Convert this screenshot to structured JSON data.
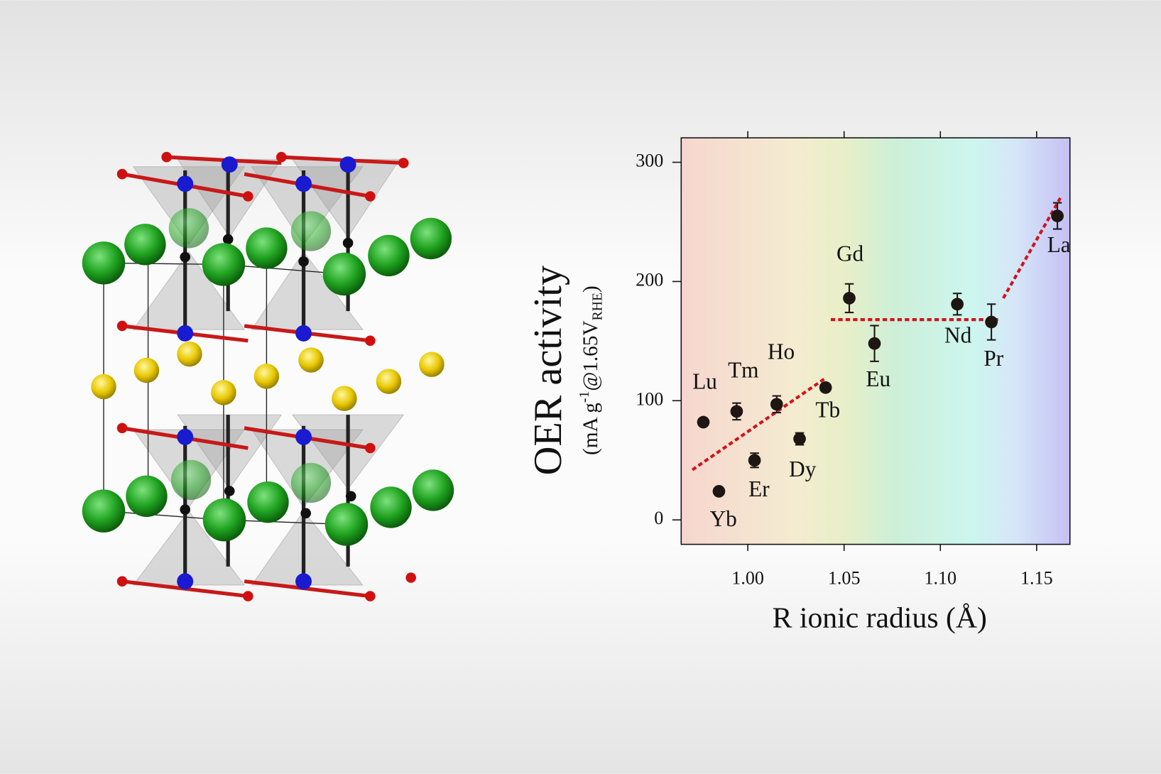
{
  "chart_data": {
    "type": "scatter",
    "ylabel": "OER activity",
    "ylabel_units": [
      "(mA g",
      "-1",
      "@1.65V",
      "RHE",
      ")"
    ],
    "xlabel": "R ionic radius (Å)",
    "point_labels": [
      "Lu",
      "Yb",
      "Tm",
      "Er",
      "Ho",
      "Dy",
      "Tb",
      "Gd",
      "Eu",
      "Nd",
      "Pr",
      "La"
    ],
    "x": [
      0.9769,
      0.985,
      0.9942,
      1.0035,
      1.015,
      1.0269,
      1.0404,
      1.0527,
      1.0658,
      1.1088,
      1.1265,
      1.1608
    ],
    "values": [
      82,
      24,
      91,
      50,
      97,
      68,
      111,
      186,
      148,
      181,
      166,
      255
    ],
    "errors": [
      null,
      null,
      7,
      6,
      7,
      5,
      3,
      12,
      15,
      9,
      15,
      11
    ],
    "color": "#1e1612",
    "trend_lines": [
      {
        "x": [
          0.9712,
          1.0404
        ],
        "y": [
          42,
          119
        ]
      },
      {
        "x": [
          1.0431,
          1.1315
        ],
        "y": [
          168,
          168
        ]
      },
      {
        "x": [
          1.1327,
          1.1623
        ],
        "y": [
          186,
          270
        ]
      }
    ],
    "trend_color": "#d0141c",
    "xlim": [
      0.9654,
      1.1673
    ],
    "ylim": [
      -20.5,
      320.5
    ],
    "xticks": [
      {
        "value": 1,
        "label": "1.00"
      },
      1.05,
      {
        "value": 1.1,
        "label": "1.10"
      },
      1.15
    ],
    "yticks": [
      0,
      100,
      200,
      300
    ]
  }
}
